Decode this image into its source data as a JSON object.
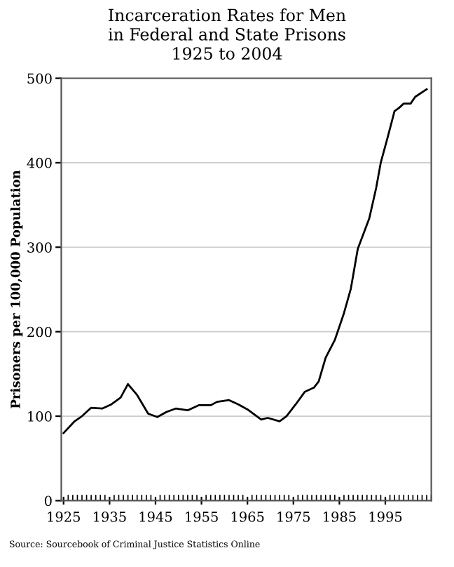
{
  "chart_data": {
    "type": "line",
    "title": "Incarceration Rates for Men\nin Federal and State Prisons\n1925 to 2004",
    "ylabel": "Prisoners per 100,000 Population",
    "x": [
      1925,
      1927.4,
      1929,
      1931,
      1933.4,
      1935.4,
      1937.4,
      1939,
      1941,
      1943.4,
      1945.4,
      1947.4,
      1949.4,
      1952,
      1954.4,
      1957,
      1958.4,
      1961,
      1963,
      1965,
      1968,
      1969.4,
      1972,
      1973.5,
      1975.5,
      1977.5,
      1979.5,
      1980.5,
      1982,
      1984,
      1986,
      1987.5,
      1989,
      1991.5,
      1993,
      1994,
      1995.5,
      1997,
      1998,
      1999,
      2000.5,
      2001.5,
      2004
    ],
    "series": [
      {
        "color": "#000000",
        "values": [
          80,
          94,
          100,
          110,
          109,
          114,
          122,
          138,
          125,
          103,
          99,
          105,
          109,
          107,
          113,
          113,
          117,
          119,
          114,
          108,
          96,
          98,
          94,
          100,
          114,
          129,
          134,
          141,
          169,
          190,
          222,
          251,
          298,
          334,
          370,
          400,
          430,
          461,
          465,
          470,
          470,
          478,
          487
        ]
      }
    ],
    "xlim": [
      1924.5,
      2005
    ],
    "ylim": [
      0,
      500
    ],
    "xticks": [
      1925,
      1935,
      1945,
      1955,
      1965,
      1975,
      1985,
      1995
    ],
    "yticks": [
      0,
      100,
      200,
      300,
      400,
      500
    ],
    "grid": "y",
    "marker": "none",
    "line_style": "solid",
    "annotations": [
      "Source: Sourcebook of Criminal Justice Statistics Online"
    ]
  }
}
